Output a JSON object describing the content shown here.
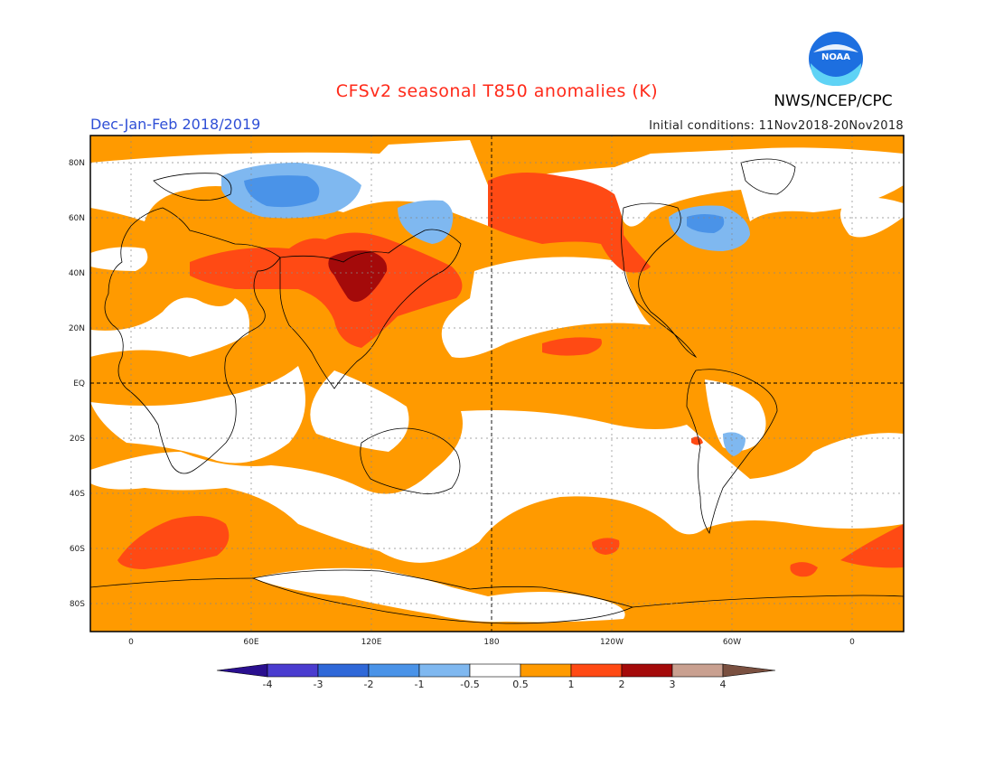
{
  "title": "CFSv2 seasonal T850 anomalies (K)",
  "agency": "NWS/NCEP/CPC",
  "logo_text": "NOAA",
  "season_label": "Dec-Jan-Feb 2018/2019",
  "initial_conditions": "Initial conditions: 11Nov2018-20Nov2018",
  "lat_labels": [
    "80N",
    "60N",
    "40N",
    "20N",
    "EQ",
    "20S",
    "40S",
    "60S",
    "80S"
  ],
  "lon_labels": [
    "0",
    "60E",
    "120E",
    "180",
    "120W",
    "60W",
    "0"
  ],
  "colorbar": {
    "tick_labels": [
      "-4",
      "-3",
      "-2",
      "-1",
      "-0.5",
      "0.5",
      "1",
      "2",
      "3",
      "4"
    ],
    "colors": [
      "#2a0f8f",
      "#4a3ccf",
      "#2f68d8",
      "#4a93e8",
      "#7fb8f0",
      "#ffffff",
      "#ff9a00",
      "#ff4a14",
      "#a40a0a",
      "#c9a090",
      "#7a5040"
    ]
  },
  "anomaly_colors": {
    "weak_warm": "#ff9a00",
    "moderate_warm": "#ff4a14",
    "strong_warm": "#a40a0a",
    "weak_cool": "#7fb8f0",
    "moderate_cool": "#4a93e8",
    "cooler": "#2f68d8"
  }
}
